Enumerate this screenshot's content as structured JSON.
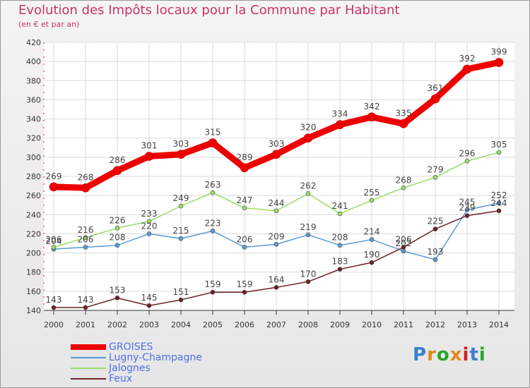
{
  "title": "Evolution des Impôts locaux pour la Commune par Habitant",
  "subtitle": "(en € et par an)",
  "logo": {
    "text": "Proxiti",
    "colors": [
      "#3a7fd0",
      "#e08a1e",
      "#2aa52a",
      "#e08a1e",
      "#d02020",
      "#3a7fd0",
      "#2aa52a"
    ]
  },
  "chart_data": {
    "type": "line",
    "x": [
      2000,
      2001,
      2002,
      2003,
      2004,
      2005,
      2006,
      2007,
      2008,
      2009,
      2010,
      2011,
      2012,
      2013,
      2014
    ],
    "ylim": [
      140,
      420
    ],
    "yticks": [
      140,
      160,
      180,
      200,
      220,
      240,
      260,
      280,
      300,
      320,
      340,
      360,
      380,
      400,
      420
    ],
    "grid": true,
    "legend_position": "bottom-left",
    "series": [
      {
        "name": "GROISES",
        "color": "#ee0000",
        "emphasis": true,
        "values": [
          269,
          268,
          286,
          301,
          303,
          315,
          289,
          303,
          320,
          334,
          342,
          335,
          361,
          392,
          399
        ]
      },
      {
        "name": "Lugny-Champagne",
        "color": "#5b9bd5",
        "emphasis": false,
        "values": [
          204,
          206,
          208,
          220,
          215,
          223,
          206,
          209,
          219,
          208,
          214,
          202,
          193,
          245,
          252
        ]
      },
      {
        "name": "Jalognes",
        "color": "#99dd66",
        "emphasis": false,
        "values": [
          206,
          216,
          226,
          233,
          249,
          263,
          247,
          244,
          262,
          241,
          255,
          268,
          279,
          296,
          305
        ]
      },
      {
        "name": "Feux",
        "color": "#6b2226",
        "emphasis": false,
        "values": [
          143,
          143,
          153,
          145,
          151,
          159,
          159,
          164,
          170,
          183,
          190,
          206,
          225,
          239,
          244
        ]
      }
    ]
  }
}
